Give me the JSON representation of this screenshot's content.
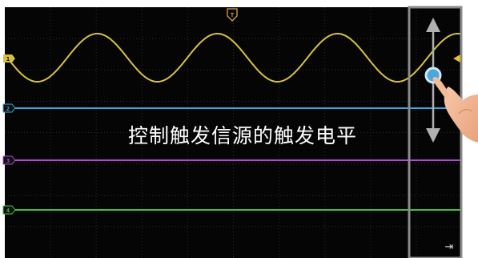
{
  "trigger_marker": {
    "label": "T",
    "color": "#d9a640"
  },
  "channels": [
    {
      "id": "1",
      "label": "1",
      "color": "#d8c23a"
    },
    {
      "id": "2",
      "label": "2",
      "color": "#3aa6e0"
    },
    {
      "id": "3",
      "label": "3",
      "color": "#b148d4"
    },
    {
      "id": "4",
      "label": "4",
      "color": "#42c040"
    }
  ],
  "trigger_level_marker": {
    "color": "#e8c41c"
  },
  "annotation": {
    "text": "控制触发信源的触发电平"
  },
  "trigger_slider": {
    "frame_color": "#8c8c8c",
    "arrow_color": "#b0b0b0",
    "knob_color": "#4aa8d8"
  },
  "exit_icon": {
    "glyph": "⇥"
  }
}
